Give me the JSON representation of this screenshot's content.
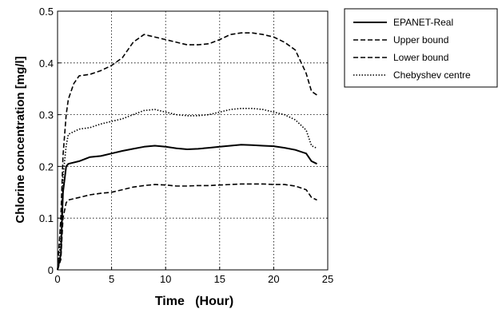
{
  "chart_data": {
    "type": "line",
    "title": "",
    "xlabel": "Time   (Hour)",
    "ylabel": "Chlorine concentration [mg/l]",
    "xlim": [
      0,
      25
    ],
    "ylim": [
      0,
      0.5
    ],
    "xticks": [
      0,
      5,
      10,
      15,
      20,
      25
    ],
    "xtick_labels": [
      "0",
      "5",
      "10",
      "15",
      "20",
      "25"
    ],
    "yticks": [
      0,
      0.1,
      0.2,
      0.3,
      0.4,
      0.5
    ],
    "ytick_labels": [
      "0",
      "0.1",
      "0.2",
      "0.3",
      "0.4",
      "0.5"
    ],
    "grid": true,
    "grid_style": "dotted",
    "legend_position": "outside-right",
    "series": [
      {
        "name": "EPANET-Real",
        "line_style": "solid",
        "color": "#000000",
        "points": [
          [
            0,
            0
          ],
          [
            0.3,
            0.03
          ],
          [
            0.5,
            0.15
          ],
          [
            0.8,
            0.2
          ],
          [
            1,
            0.205
          ],
          [
            2,
            0.21
          ],
          [
            3,
            0.218
          ],
          [
            4,
            0.22
          ],
          [
            5,
            0.225
          ],
          [
            6,
            0.23
          ],
          [
            7,
            0.234
          ],
          [
            8,
            0.238
          ],
          [
            9,
            0.24
          ],
          [
            10,
            0.238
          ],
          [
            11,
            0.235
          ],
          [
            12,
            0.233
          ],
          [
            13,
            0.234
          ],
          [
            14,
            0.236
          ],
          [
            15,
            0.238
          ],
          [
            16,
            0.24
          ],
          [
            17,
            0.242
          ],
          [
            18,
            0.241
          ],
          [
            19,
            0.24
          ],
          [
            20,
            0.239
          ],
          [
            21,
            0.236
          ],
          [
            22,
            0.232
          ],
          [
            23,
            0.225
          ],
          [
            23.5,
            0.21
          ],
          [
            24,
            0.205
          ]
        ]
      },
      {
        "name": "Upper bound",
        "line_style": "dashed",
        "color": "#000000",
        "points": [
          [
            0,
            0
          ],
          [
            0.3,
            0.1
          ],
          [
            0.5,
            0.22
          ],
          [
            0.8,
            0.3
          ],
          [
            1,
            0.33
          ],
          [
            1.5,
            0.36
          ],
          [
            2,
            0.375
          ],
          [
            3,
            0.378
          ],
          [
            4,
            0.385
          ],
          [
            5,
            0.395
          ],
          [
            6,
            0.41
          ],
          [
            7,
            0.44
          ],
          [
            8,
            0.455
          ],
          [
            9,
            0.45
          ],
          [
            10,
            0.445
          ],
          [
            11,
            0.44
          ],
          [
            12,
            0.435
          ],
          [
            13,
            0.435
          ],
          [
            14,
            0.437
          ],
          [
            15,
            0.445
          ],
          [
            16,
            0.455
          ],
          [
            17,
            0.458
          ],
          [
            18,
            0.458
          ],
          [
            19,
            0.455
          ],
          [
            20,
            0.45
          ],
          [
            21,
            0.44
          ],
          [
            22,
            0.425
          ],
          [
            23,
            0.38
          ],
          [
            23.5,
            0.345
          ],
          [
            24,
            0.338
          ]
        ]
      },
      {
        "name": "Lower bound",
        "line_style": "dashed",
        "color": "#000000",
        "points": [
          [
            0,
            0
          ],
          [
            0.3,
            0.02
          ],
          [
            0.5,
            0.1
          ],
          [
            0.8,
            0.13
          ],
          [
            1,
            0.135
          ],
          [
            2,
            0.14
          ],
          [
            3,
            0.145
          ],
          [
            4,
            0.148
          ],
          [
            5,
            0.15
          ],
          [
            6,
            0.155
          ],
          [
            7,
            0.16
          ],
          [
            8,
            0.163
          ],
          [
            9,
            0.165
          ],
          [
            10,
            0.164
          ],
          [
            11,
            0.162
          ],
          [
            12,
            0.162
          ],
          [
            13,
            0.163
          ],
          [
            14,
            0.163
          ],
          [
            15,
            0.164
          ],
          [
            16,
            0.165
          ],
          [
            17,
            0.166
          ],
          [
            18,
            0.166
          ],
          [
            19,
            0.166
          ],
          [
            20,
            0.165
          ],
          [
            21,
            0.165
          ],
          [
            22,
            0.162
          ],
          [
            23,
            0.155
          ],
          [
            23.5,
            0.14
          ],
          [
            24,
            0.135
          ]
        ]
      },
      {
        "name": "Chebyshev centre",
        "line_style": "dotted",
        "color": "#000000",
        "points": [
          [
            0,
            0
          ],
          [
            0.3,
            0.06
          ],
          [
            0.5,
            0.18
          ],
          [
            0.8,
            0.24
          ],
          [
            1,
            0.262
          ],
          [
            2,
            0.272
          ],
          [
            3,
            0.275
          ],
          [
            4,
            0.282
          ],
          [
            5,
            0.287
          ],
          [
            6,
            0.292
          ],
          [
            7,
            0.3
          ],
          [
            8,
            0.308
          ],
          [
            9,
            0.31
          ],
          [
            10,
            0.305
          ],
          [
            11,
            0.3
          ],
          [
            12,
            0.298
          ],
          [
            13,
            0.298
          ],
          [
            14,
            0.3
          ],
          [
            15,
            0.305
          ],
          [
            16,
            0.31
          ],
          [
            17,
            0.312
          ],
          [
            18,
            0.312
          ],
          [
            19,
            0.31
          ],
          [
            20,
            0.305
          ],
          [
            21,
            0.3
          ],
          [
            22,
            0.29
          ],
          [
            23,
            0.27
          ],
          [
            23.5,
            0.24
          ],
          [
            24,
            0.235
          ]
        ]
      }
    ]
  }
}
